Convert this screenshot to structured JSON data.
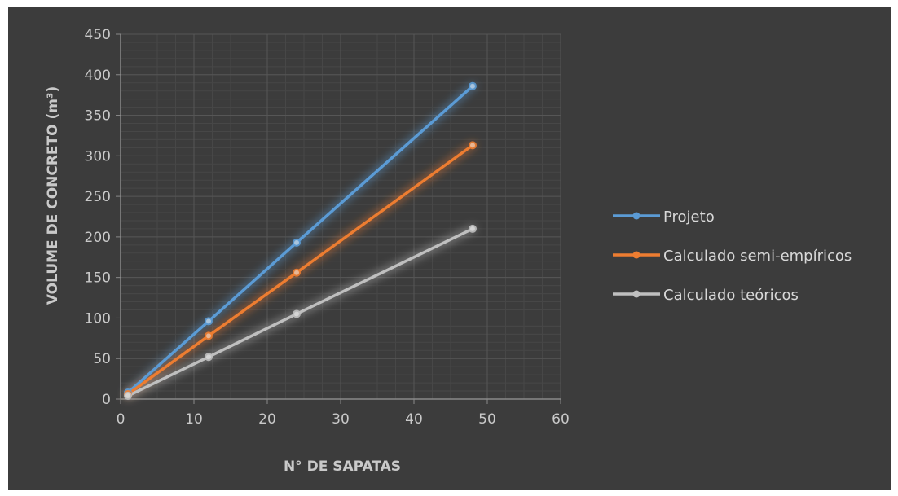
{
  "chart_data": {
    "type": "scatter",
    "title": "",
    "xlabel": "N° DE SAPATAS",
    "ylabel": "VOLUME DE CONCRETO (m³)",
    "xlim": [
      0,
      60
    ],
    "ylim": [
      0,
      450
    ],
    "xticks": [
      0,
      10,
      20,
      30,
      40,
      50,
      60
    ],
    "yticks": [
      0,
      50,
      100,
      150,
      200,
      250,
      300,
      350,
      400,
      450
    ],
    "grid": true,
    "legend_position": "right",
    "background": "#3c3c3c",
    "series": [
      {
        "name": "Projeto",
        "color": "#5b9bd5",
        "x": [
          1,
          12,
          24,
          48
        ],
        "y": [
          8,
          96,
          193,
          386
        ]
      },
      {
        "name": "Calculado semi-empíricos",
        "color": "#ed7d31",
        "x": [
          1,
          12,
          24,
          48
        ],
        "y": [
          6,
          78,
          156,
          313
        ]
      },
      {
        "name": "Calculado teóricos",
        "color": "#bfbfbf",
        "x": [
          1,
          12,
          24,
          48
        ],
        "y": [
          4,
          52,
          105,
          210
        ]
      }
    ]
  }
}
